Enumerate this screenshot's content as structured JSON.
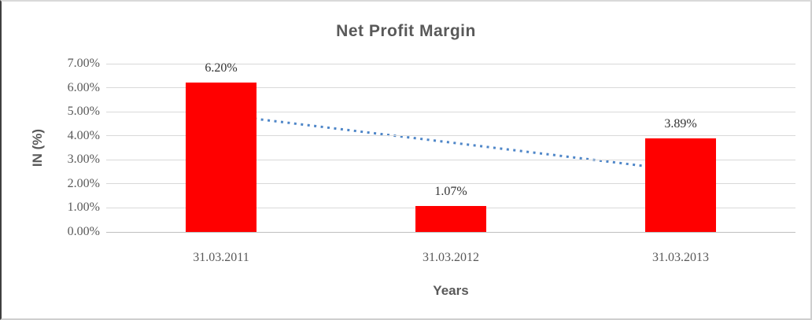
{
  "chart_data": {
    "type": "bar",
    "title": "Net Profit Margin",
    "xlabel": "Years",
    "ylabel": "IN (%)",
    "categories": [
      "31.03.2011",
      "31.03.2012",
      "31.03.2013"
    ],
    "values": [
      6.2,
      1.07,
      3.89
    ],
    "data_labels": [
      "6.20%",
      "1.07%",
      "3.89%"
    ],
    "y_tick_labels": [
      "0.00%",
      "1.00%",
      "2.00%",
      "3.00%",
      "4.00%",
      "5.00%",
      "6.00%",
      "7.00%"
    ],
    "ylim": [
      0,
      7
    ],
    "y_tick_step": 1,
    "grid": true,
    "legend": "none",
    "bar_color": "#ff0000",
    "gridline_color": "#d9d9d9",
    "trendline": {
      "type": "linear",
      "style": "dotted",
      "color": "#4e86c8",
      "start_value": 4.88,
      "end_value": 2.56,
      "from_category": "31.03.2011",
      "to_category": "31.03.2013"
    }
  }
}
